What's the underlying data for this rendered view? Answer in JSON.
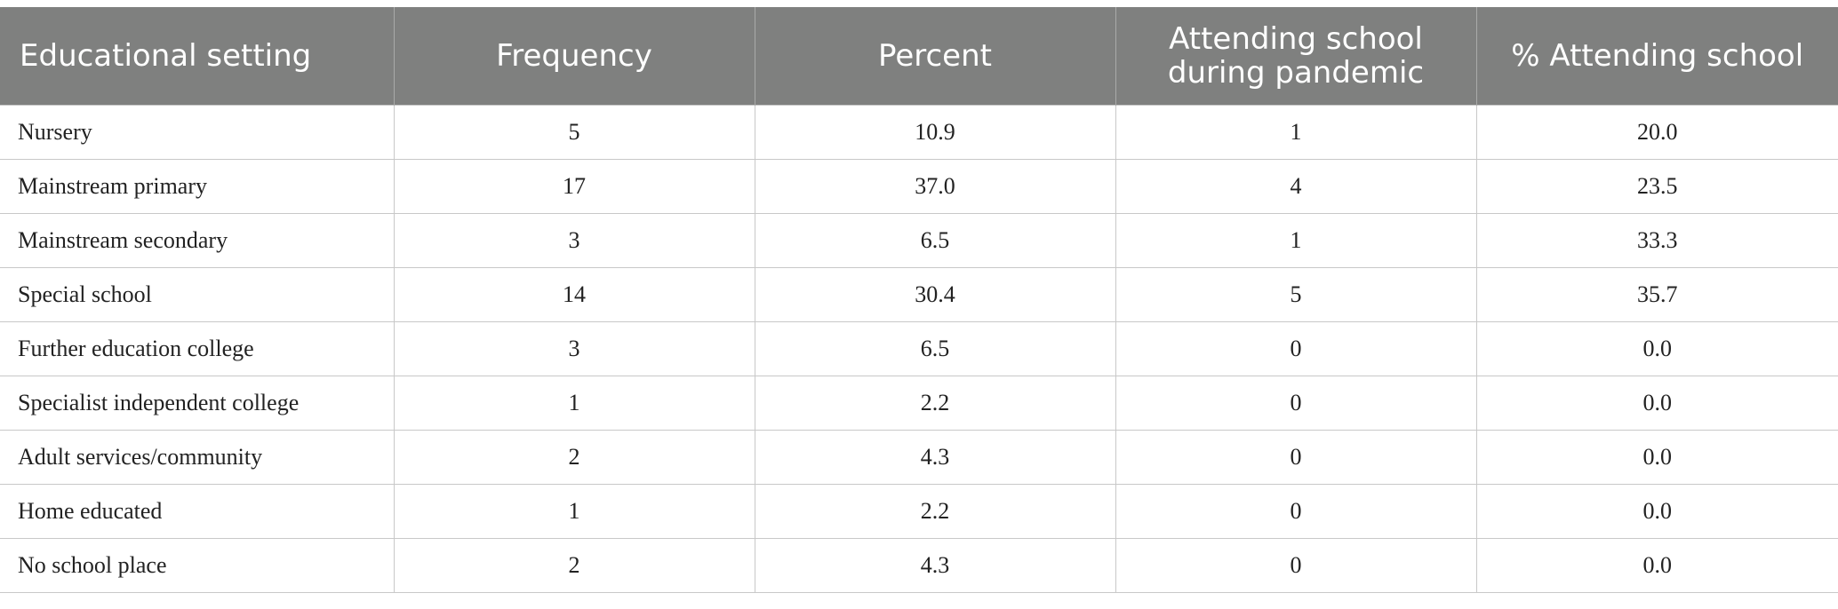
{
  "table": {
    "headers": [
      "Educational setting",
      "Frequency",
      "Percent",
      "Attending school during pandemic",
      "% Attending school"
    ],
    "rows": [
      [
        "Nursery",
        "5",
        "10.9",
        "1",
        "20.0"
      ],
      [
        "Mainstream primary",
        "17",
        "37.0",
        "4",
        "23.5"
      ],
      [
        "Mainstream secondary",
        "3",
        "6.5",
        "1",
        "33.3"
      ],
      [
        "Special school",
        "14",
        "30.4",
        "5",
        "35.7"
      ],
      [
        "Further education college",
        "3",
        "6.5",
        "0",
        "0.0"
      ],
      [
        "Specialist independent college",
        "1",
        "2.2",
        "0",
        "0.0"
      ],
      [
        "Adult services/community",
        "2",
        "4.3",
        "0",
        "0.0"
      ],
      [
        "Home educated",
        "1",
        "2.2",
        "0",
        "0.0"
      ],
      [
        "No school place",
        "2",
        "4.3",
        "0",
        "0.0"
      ]
    ]
  },
  "colors": {
    "header_bg": "#7f807f",
    "header_text": "#ffffff",
    "border": "#c8c8c8"
  }
}
